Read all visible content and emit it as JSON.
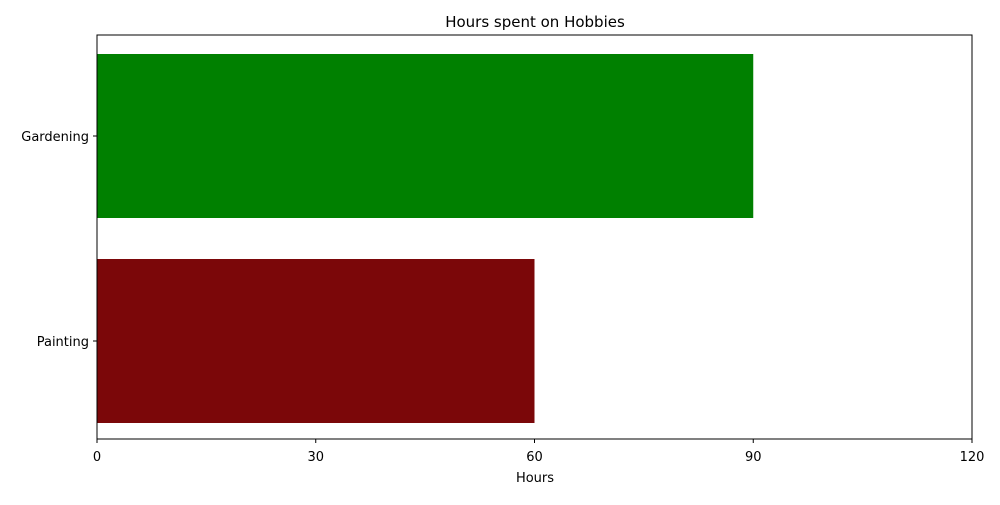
{
  "chart_data": {
    "type": "bar",
    "orientation": "horizontal",
    "title": "Hours spent on Hobbies",
    "xlabel": "Hours",
    "ylabel": "",
    "categories": [
      "Gardening",
      "Painting"
    ],
    "values": [
      90,
      60
    ],
    "colors": [
      "#008000",
      "#7b0709"
    ],
    "xlim": [
      0,
      120
    ],
    "xticks": [
      0,
      30,
      60,
      90,
      120
    ],
    "grid": false,
    "legend": "none"
  }
}
